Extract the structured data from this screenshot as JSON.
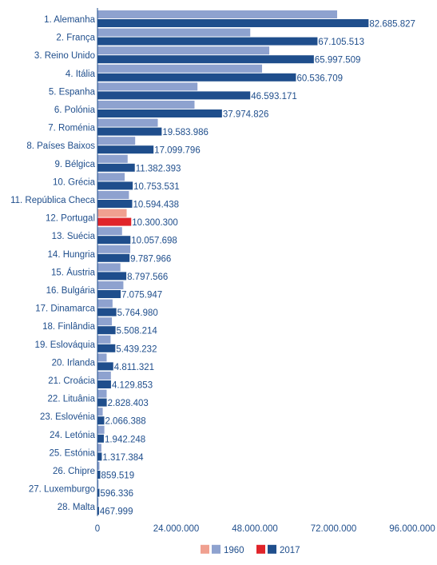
{
  "chart_data": {
    "type": "bar",
    "orientation": "horizontal",
    "categories": [
      "1. Alemanha",
      "2. França",
      "3. Reino Unido",
      "4. Itália",
      "5. Espanha",
      "6. Polónia",
      "7. Roménia",
      "8. Países Baixos",
      "9. Bélgica",
      "10. Grécia",
      "11. República Checa",
      "12. Portugal",
      "13. Suécia",
      "14. Hungria",
      "15. Áustria",
      "16. Bulgária",
      "17. Dinamarca",
      "18. Finlândia",
      "19. Eslováquia",
      "20. Irlanda",
      "21. Croácia",
      "22. Lituânia",
      "23. Eslovénia",
      "24. Letónia",
      "25. Estónia",
      "26. Chipre",
      "27. Luxemburgo",
      "28. Malta"
    ],
    "series": [
      {
        "name": "1960",
        "values": [
          73100000,
          46600000,
          52400000,
          50200000,
          30500000,
          29600000,
          18400000,
          11500000,
          9200000,
          8300000,
          9600000,
          8900000,
          7500000,
          10000000,
          7000000,
          7900000,
          4600000,
          4400000,
          4000000,
          2800000,
          4100000,
          2800000,
          1600000,
          2100000,
          1200000,
          600000,
          300000,
          300000
        ]
      },
      {
        "name": "2017",
        "values": [
          82685827,
          67105513,
          65997509,
          60536709,
          46593171,
          37974826,
          19583986,
          17099796,
          11382393,
          10753531,
          10594438,
          10300300,
          10057698,
          9787966,
          8797566,
          7075947,
          5764980,
          5508214,
          5439232,
          4811321,
          4129853,
          2828403,
          2066388,
          1942248,
          1317384,
          859519,
          596336,
          467999
        ],
        "labels": [
          "82.685.827",
          "67.105.513",
          "65.997.509",
          "60.536.709",
          "46.593.171",
          "37.974.826",
          "19.583.986",
          "17.099.796",
          "11.382.393",
          "10.753.531",
          "10.594.438",
          "10.300.300",
          "10.057.698",
          "9.787.966",
          "8.797.566",
          "7.075.947",
          "5.764.980",
          "5.508.214",
          "5.439.232",
          "4.811.321",
          "4.129.853",
          "2.828.403",
          "2.066.388",
          "1.942.248",
          "1.317.384",
          "859.519",
          "596.336",
          "467.999"
        ]
      }
    ],
    "highlight_category": "12. Portugal",
    "xlim": [
      0,
      96000000
    ],
    "x_ticks": [
      0,
      24000000,
      48000000,
      72000000,
      96000000
    ],
    "x_tick_labels": [
      "0",
      "24.000.000",
      "48.000.000",
      "72.000.000",
      "96.000.000"
    ],
    "grid": false,
    "legend": {
      "placement": "bottom",
      "entries": [
        {
          "label": "1960",
          "colors": [
            "#f0a090",
            "#8ea2cf"
          ]
        },
        {
          "label": "2017",
          "colors": [
            "#e0242a",
            "#1f4e8c"
          ]
        }
      ]
    },
    "colors": {
      "series_1960": "#8ea2cf",
      "series_2017": "#1f4e8c",
      "highlight_1960": "#f0a090",
      "highlight_2017": "#e0242a",
      "text": "#1f4e8c",
      "axis": "#1f4e8c"
    }
  }
}
